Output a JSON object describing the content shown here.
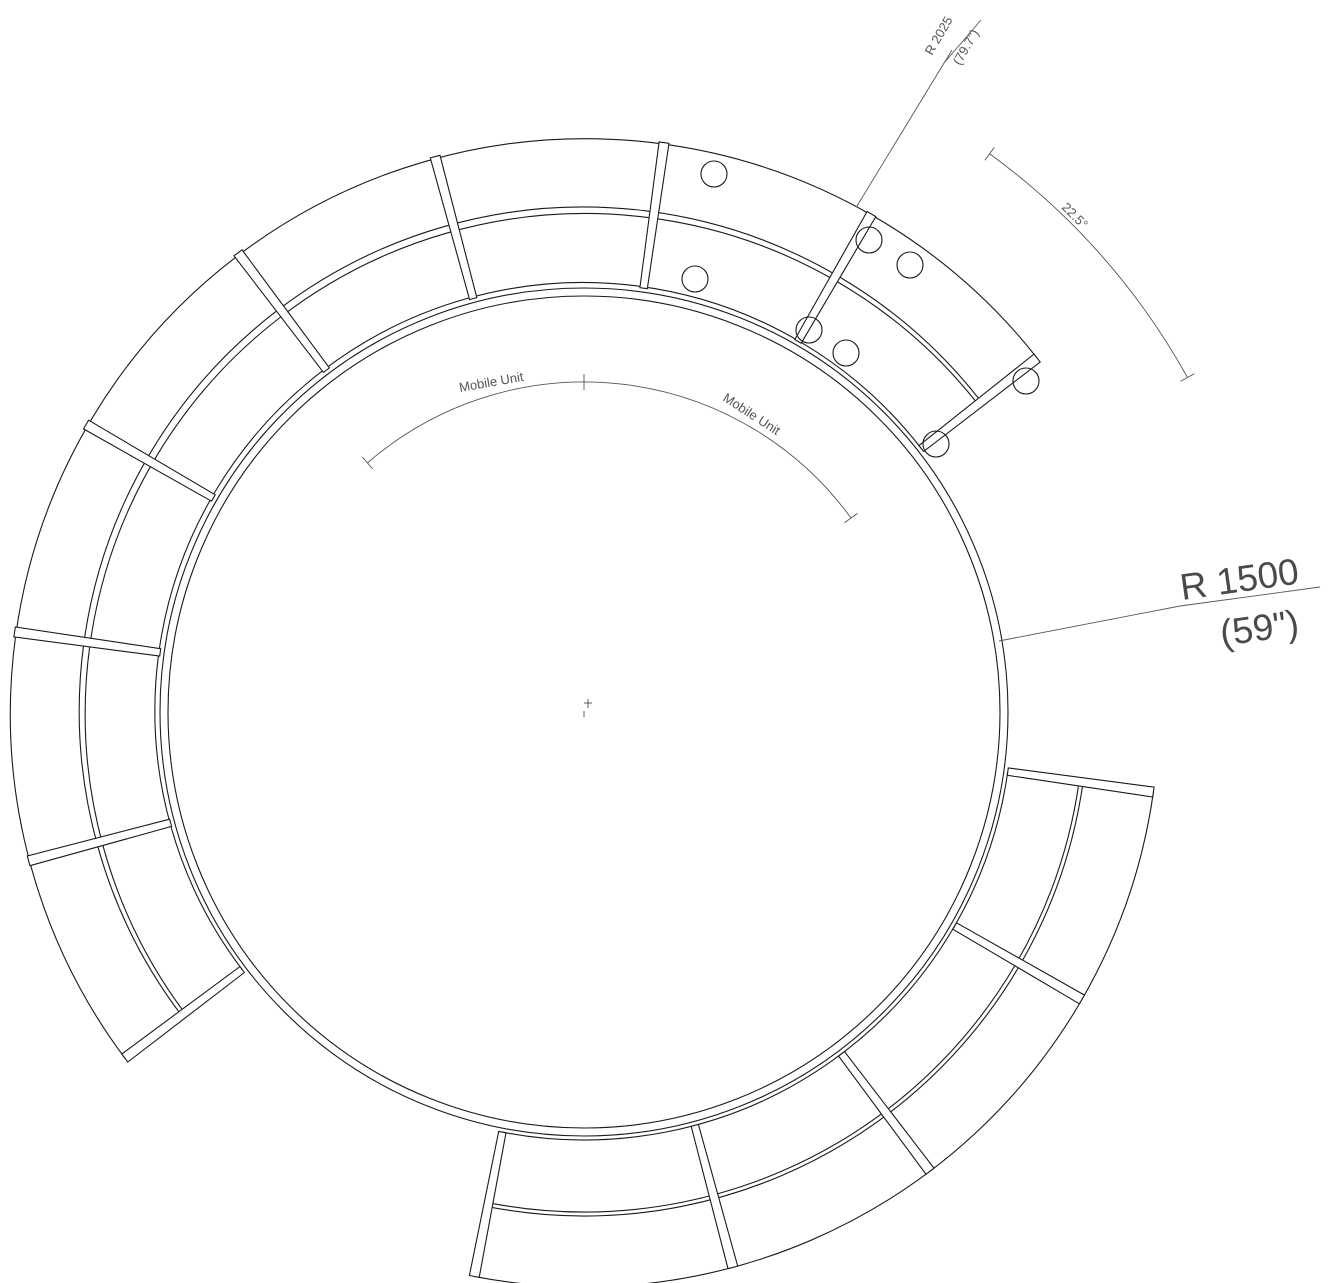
{
  "drawing": {
    "inner_radius_label": "R 1500",
    "inner_radius_imperial": "(59\")",
    "outer_radius_label": "R 2025",
    "outer_radius_imperial": "(79.7\")",
    "angle_label": "22.5°",
    "mobile_unit_label_1": "Mobile Unit",
    "mobile_unit_label_2": "Mobile Unit",
    "colors": {
      "line": "#1a1a1a",
      "dimension": "#555555",
      "background": "#ffffff"
    }
  }
}
